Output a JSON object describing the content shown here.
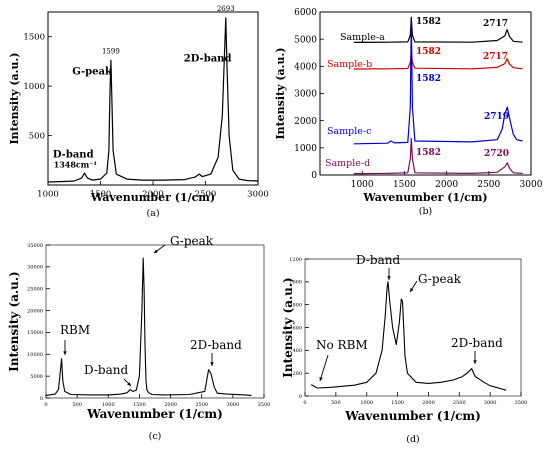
{
  "chart_data": [
    {
      "type": "line",
      "panel_label": "(a)",
      "xlabel": "Wavenumber (1/cm)",
      "ylabel": "Intensity (a.u.)",
      "xlim": [
        1000,
        3000
      ],
      "ylim": [
        0,
        1750
      ],
      "xticks": [
        1000,
        1500,
        2000,
        2500,
        3000
      ],
      "yticks": [
        500,
        1000,
        1500
      ],
      "grid": false,
      "series": [
        {
          "color": "#000000",
          "x": [
            1000,
            1150,
            1250,
            1320,
            1348,
            1375,
            1420,
            1500,
            1560,
            1580,
            1590,
            1599,
            1608,
            1620,
            1650,
            1750,
            1900,
            2100,
            2300,
            2400,
            2440,
            2470,
            2550,
            2620,
            2660,
            2680,
            2693,
            2705,
            2725,
            2760,
            2820,
            2900,
            3000
          ],
          "y": [
            30,
            35,
            40,
            70,
            120,
            70,
            50,
            60,
            120,
            350,
            900,
            1260,
            900,
            350,
            110,
            60,
            50,
            50,
            55,
            80,
            110,
            85,
            110,
            280,
            700,
            1300,
            1690,
            1200,
            500,
            150,
            60,
            45,
            40
          ]
        }
      ],
      "annotations": [
        {
          "text": "1599",
          "x": 1599,
          "y": 1260
        },
        {
          "text": "G-peak",
          "x": 1420,
          "y": 1120
        },
        {
          "text": "2D-band",
          "x": 2520,
          "y": 1250
        },
        {
          "text": "2693",
          "x": 2693,
          "y": 1690
        },
        {
          "text": "D-band",
          "x": 1240,
          "y": 280
        },
        {
          "text": "1348cm⁻¹",
          "x": 1260,
          "y": 175
        }
      ]
    },
    {
      "type": "line",
      "panel_label": "(b)",
      "xlabel": "Wavenumber (1/cm)",
      "ylabel": "Intensity (a.u.)",
      "xlim": [
        500,
        3000
      ],
      "ylim": [
        0,
        6000
      ],
      "xticks": [
        1000,
        1500,
        2000,
        2500,
        3000
      ],
      "yticks": [
        0,
        1000,
        2000,
        3000,
        4000,
        5000,
        6000
      ],
      "grid": false,
      "series": [
        {
          "name": "Sample-a",
          "color": "#000000",
          "x": [
            900,
            1300,
            1540,
            1570,
            1582,
            1595,
            1625,
            2300,
            2600,
            2690,
            2717,
            2745,
            2790,
            2900
          ],
          "y": [
            4880,
            4890,
            4900,
            5150,
            5800,
            5150,
            4900,
            4890,
            4950,
            5120,
            5350,
            5100,
            4920,
            4890
          ]
        },
        {
          "name": "Sample-b",
          "color": "#cc0000",
          "x": [
            900,
            1300,
            1540,
            1570,
            1582,
            1595,
            1625,
            2300,
            2600,
            2690,
            2717,
            2745,
            2790,
            2900
          ],
          "y": [
            3900,
            3910,
            3920,
            4150,
            4500,
            4150,
            3930,
            3910,
            3960,
            4100,
            4280,
            4080,
            3950,
            3910
          ]
        },
        {
          "name": "Sample-c",
          "color": "#0000cc",
          "x": [
            900,
            1300,
            1340,
            1380,
            1540,
            1570,
            1582,
            1595,
            1625,
            2300,
            2600,
            2660,
            2690,
            2719,
            2745,
            2790,
            2830,
            2900
          ],
          "y": [
            1150,
            1170,
            1250,
            1180,
            1200,
            2500,
            5700,
            2500,
            1250,
            1220,
            1300,
            1700,
            2250,
            2500,
            2100,
            1500,
            1300,
            1250
          ]
        },
        {
          "name": "Sample-d",
          "color": "#7a0a5a",
          "x": [
            900,
            1300,
            1540,
            1570,
            1582,
            1595,
            1625,
            2300,
            2600,
            2690,
            2720,
            2745,
            2790,
            2900
          ],
          "y": [
            50,
            60,
            80,
            600,
            1350,
            600,
            80,
            60,
            100,
            300,
            450,
            250,
            80,
            60
          ]
        }
      ],
      "annotations": [
        {
          "text": "1582",
          "color": "#000000"
        },
        {
          "text": "2717",
          "color": "#000000"
        },
        {
          "text": "1582",
          "color": "#cc0000"
        },
        {
          "text": "2717",
          "color": "#cc0000"
        },
        {
          "text": "1582",
          "color": "#0000cc"
        },
        {
          "text": "2719",
          "color": "#0000cc"
        },
        {
          "text": "1582",
          "color": "#7a0a5a"
        },
        {
          "text": "2720",
          "color": "#7a0a5a"
        }
      ]
    },
    {
      "type": "line",
      "panel_label": "(c)",
      "xlabel": "Wavenumber (1/cm)",
      "ylabel": "Intensity (a.u.)",
      "xlim": [
        0,
        3500
      ],
      "ylim": [
        0,
        35000
      ],
      "xticks": [
        0,
        500,
        1000,
        1500,
        2000,
        2500,
        3000,
        3500
      ],
      "yticks": [
        0,
        5000,
        10000,
        15000,
        20000,
        25000,
        30000,
        35000
      ],
      "grid": false,
      "series": [
        {
          "color": "#000000",
          "x": [
            0,
            150,
            200,
            230,
            250,
            270,
            300,
            400,
            700,
            1000,
            1200,
            1300,
            1350,
            1400,
            1450,
            1500,
            1540,
            1560,
            1575,
            1590,
            1605,
            1620,
            1650,
            1700,
            1900,
            2300,
            2550,
            2610,
            2650,
            2700,
            2750,
            2900,
            3200,
            3300
          ],
          "y": [
            600,
            900,
            2000,
            6000,
            9000,
            4000,
            1500,
            800,
            700,
            700,
            900,
            1200,
            1900,
            1500,
            1800,
            5000,
            20000,
            32000,
            25000,
            12000,
            4000,
            1800,
            1200,
            800,
            700,
            800,
            1500,
            6500,
            5500,
            2500,
            1100,
            900,
            700,
            600
          ]
        }
      ],
      "annotations": [
        {
          "text": "G-peak"
        },
        {
          "text": "RBM"
        },
        {
          "text": "D-band"
        },
        {
          "text": "2D-band"
        }
      ]
    },
    {
      "type": "line",
      "panel_label": "(d)",
      "xlabel": "Wavenumber (1/cm)",
      "ylabel": "Intensity (a.u.)",
      "xlim": [
        0,
        3500
      ],
      "ylim": [
        0,
        1200
      ],
      "xticks": [
        0,
        500,
        1000,
        1500,
        2000,
        2500,
        3000,
        3500
      ],
      "yticks": [
        0,
        200,
        400,
        600,
        800,
        1000,
        1200
      ],
      "grid": false,
      "series": [
        {
          "color": "#000000",
          "x": [
            100,
            200,
            400,
            600,
            800,
            1000,
            1150,
            1250,
            1300,
            1330,
            1345,
            1370,
            1420,
            1480,
            1530,
            1560,
            1580,
            1600,
            1620,
            1660,
            1800,
            2000,
            2200,
            2400,
            2550,
            2650,
            2700,
            2760,
            2820,
            2900,
            3000,
            3200,
            3260
          ],
          "y": [
            100,
            70,
            75,
            85,
            95,
            120,
            200,
            400,
            700,
            950,
            1000,
            850,
            600,
            450,
            650,
            850,
            830,
            600,
            350,
            200,
            120,
            110,
            120,
            140,
            170,
            210,
            240,
            170,
            150,
            120,
            90,
            60,
            50
          ]
        }
      ],
      "annotations": [
        {
          "text": "D-band"
        },
        {
          "text": "G-peak"
        },
        {
          "text": "No RBM"
        },
        {
          "text": "2D-band"
        }
      ]
    }
  ]
}
